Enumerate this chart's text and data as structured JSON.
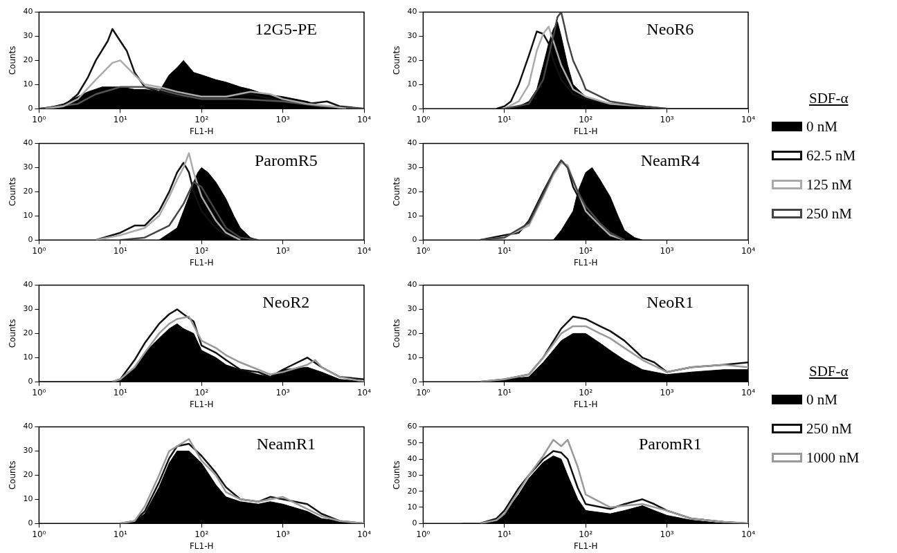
{
  "chart_data": [
    {
      "type": "line",
      "title": "12G5-PE",
      "xlabel": "FL1-H",
      "ylabel": "Counts",
      "log": "x",
      "xlim": [
        1,
        10000
      ],
      "ylim": [
        0,
        40
      ],
      "xticks": [
        {
          "value": 1,
          "label": "10⁰"
        },
        {
          "value": 10,
          "label": "10¹"
        },
        {
          "value": 100,
          "label": "10²"
        },
        {
          "value": 1000,
          "label": "10³"
        },
        {
          "value": 10000,
          "label": "10⁴"
        }
      ],
      "yticks": [
        0,
        10,
        20,
        30,
        40
      ],
      "legend": false,
      "series": [
        {
          "type": "area",
          "color": "#000000",
          "x": [
            1,
            1.5,
            2,
            3,
            4,
            6,
            8,
            10,
            15,
            20,
            30,
            40,
            50,
            60,
            80,
            100,
            150,
            200,
            300,
            400,
            600,
            1000,
            2000,
            3000,
            5000,
            10000
          ],
          "values": [
            0,
            1,
            2,
            5,
            7,
            9,
            9,
            9,
            8,
            8,
            7,
            14,
            17,
            20,
            15,
            14,
            12,
            11,
            9,
            8,
            6,
            5,
            3,
            1,
            0,
            0
          ]
        },
        {
          "type": "line",
          "color": "#111111",
          "x": [
            1,
            2,
            3,
            4,
            5,
            7,
            8,
            10,
            12,
            15,
            20,
            30,
            50,
            100,
            200,
            400,
            1000,
            2000,
            3500,
            5000,
            10000
          ],
          "values": [
            0,
            1,
            6,
            13,
            20,
            28,
            33,
            28,
            24,
            15,
            9,
            7,
            5,
            5,
            5,
            6,
            3,
            2,
            3,
            1,
            0
          ]
        },
        {
          "type": "line",
          "color": "#555555",
          "x": [
            1,
            3,
            5,
            8,
            10,
            20,
            30,
            50,
            100,
            300,
            1000,
            3000,
            10000
          ],
          "values": [
            0,
            2,
            6,
            8,
            9,
            9,
            8,
            6,
            4,
            4,
            3,
            1,
            0
          ]
        },
        {
          "type": "line",
          "color": "#aaaaaa",
          "x": [
            1.2,
            2,
            3,
            5,
            8,
            10,
            15,
            20,
            30,
            50,
            100,
            200,
            400,
            700,
            1000,
            2000,
            4000,
            6000
          ],
          "values": [
            0,
            1,
            4,
            12,
            19,
            20,
            14,
            10,
            9,
            7,
            5,
            5,
            7,
            6,
            4,
            2,
            1,
            0
          ]
        }
      ]
    },
    {
      "type": "line",
      "title": "NeoR6",
      "xlabel": "FL1-H",
      "ylabel": "Counts",
      "log": "x",
      "xlim": [
        1,
        10000
      ],
      "ylim": [
        0,
        40
      ],
      "xticks": [
        {
          "value": 1,
          "label": "10⁰"
        },
        {
          "value": 10,
          "label": "10¹"
        },
        {
          "value": 100,
          "label": "10²"
        },
        {
          "value": 1000,
          "label": "10³"
        },
        {
          "value": 10000,
          "label": "10⁴"
        }
      ],
      "yticks": [
        0,
        10,
        20,
        30,
        40
      ],
      "legend": "right",
      "legend_title": "SDF-α",
      "series": [
        {
          "name": "0 nM",
          "type": "area",
          "color": "#000000",
          "x": [
            10,
            15,
            20,
            25,
            30,
            35,
            40,
            45,
            50,
            60,
            70,
            100,
            200,
            500,
            1000,
            10000
          ],
          "values": [
            0,
            1,
            3,
            8,
            18,
            27,
            33,
            36,
            30,
            18,
            10,
            5,
            2,
            1,
            0,
            0
          ]
        },
        {
          "name": "62.5 nM",
          "type": "line",
          "color": "#111111",
          "x": [
            8,
            10,
            12,
            15,
            20,
            25,
            30,
            35,
            40,
            50,
            70,
            100,
            200,
            500,
            1000
          ],
          "values": [
            0,
            1,
            3,
            10,
            22,
            32,
            31,
            27,
            20,
            12,
            6,
            4,
            2,
            1,
            0
          ]
        },
        {
          "name": "125 nM",
          "type": "line",
          "color": "#aaaaaa",
          "x": [
            10,
            15,
            20,
            25,
            30,
            35,
            40,
            50,
            70,
            100,
            200,
            500,
            1000
          ],
          "values": [
            0,
            3,
            10,
            24,
            31,
            34,
            28,
            18,
            8,
            5,
            2,
            1,
            0
          ]
        },
        {
          "name": "250 nM",
          "type": "line",
          "color": "#444444",
          "x": [
            10,
            20,
            30,
            40,
            45,
            50,
            55,
            60,
            70,
            90,
            100,
            200,
            500,
            1000
          ],
          "values": [
            0,
            2,
            12,
            30,
            38,
            40,
            34,
            28,
            20,
            12,
            8,
            3,
            1,
            0
          ]
        }
      ]
    },
    {
      "type": "line",
      "title": "ParomR5",
      "xlabel": "FL1-H",
      "ylabel": "Counts",
      "log": "x",
      "xlim": [
        1,
        10000
      ],
      "ylim": [
        0,
        40
      ],
      "xticks": [
        {
          "value": 1,
          "label": "10⁰"
        },
        {
          "value": 10,
          "label": "10¹"
        },
        {
          "value": 100,
          "label": "10²"
        },
        {
          "value": 1000,
          "label": "10³"
        },
        {
          "value": 10000,
          "label": "10⁴"
        }
      ],
      "yticks": [
        0,
        10,
        20,
        30,
        40
      ],
      "legend": false,
      "series": [
        {
          "type": "area",
          "color": "#000000",
          "x": [
            30,
            50,
            60,
            70,
            80,
            90,
            100,
            120,
            150,
            200,
            250,
            300,
            400,
            500
          ],
          "values": [
            0,
            5,
            12,
            18,
            24,
            28,
            30,
            28,
            24,
            17,
            10,
            5,
            1,
            0
          ]
        },
        {
          "type": "line",
          "color": "#111111",
          "x": [
            5,
            10,
            15,
            20,
            30,
            40,
            50,
            60,
            70,
            80,
            100,
            150,
            200,
            300
          ],
          "values": [
            0,
            3,
            6,
            6,
            12,
            20,
            28,
            32,
            28,
            20,
            12,
            5,
            2,
            0
          ]
        },
        {
          "type": "line",
          "color": "#aaaaaa",
          "x": [
            5,
            10,
            20,
            30,
            40,
            50,
            60,
            70,
            80,
            100,
            150,
            200,
            300
          ],
          "values": [
            0,
            2,
            5,
            10,
            18,
            25,
            30,
            36,
            28,
            18,
            8,
            3,
            0
          ]
        },
        {
          "type": "line",
          "color": "#444444",
          "x": [
            10,
            20,
            40,
            60,
            80,
            100,
            150,
            200,
            300,
            500
          ],
          "values": [
            0,
            1,
            6,
            15,
            24,
            22,
            12,
            5,
            1,
            0
          ]
        }
      ]
    },
    {
      "type": "line",
      "title": "NeamR4",
      "xlabel": "FL1-H",
      "ylabel": "Counts",
      "log": "x",
      "xlim": [
        1,
        10000
      ],
      "ylim": [
        0,
        40
      ],
      "xticks": [
        {
          "value": 1,
          "label": "10⁰"
        },
        {
          "value": 10,
          "label": "10¹"
        },
        {
          "value": 100,
          "label": "10²"
        },
        {
          "value": 1000,
          "label": "10³"
        },
        {
          "value": 10000,
          "label": "10⁴"
        }
      ],
      "yticks": [
        0,
        10,
        20,
        30,
        40
      ],
      "legend": false,
      "series": [
        {
          "type": "area",
          "color": "#000000",
          "x": [
            40,
            50,
            70,
            80,
            100,
            120,
            150,
            200,
            250,
            300,
            400,
            500
          ],
          "values": [
            0,
            4,
            12,
            20,
            28,
            30,
            25,
            18,
            10,
            4,
            1,
            0
          ]
        },
        {
          "type": "line",
          "color": "#111111",
          "x": [
            5,
            10,
            15,
            20,
            30,
            40,
            50,
            60,
            70,
            100,
            150,
            200,
            300
          ],
          "values": [
            0,
            2,
            3,
            8,
            20,
            28,
            33,
            30,
            22,
            12,
            6,
            2,
            0
          ]
        },
        {
          "type": "line",
          "color": "#aaaaaa",
          "x": [
            5,
            10,
            20,
            30,
            40,
            50,
            60,
            70,
            100,
            150,
            200,
            300
          ],
          "values": [
            0,
            1,
            6,
            18,
            27,
            32,
            31,
            25,
            12,
            6,
            2,
            0
          ]
        },
        {
          "type": "line",
          "color": "#444444",
          "x": [
            5,
            10,
            20,
            30,
            40,
            50,
            60,
            80,
            100,
            150,
            200,
            300
          ],
          "values": [
            0,
            1,
            7,
            19,
            28,
            33,
            30,
            20,
            14,
            7,
            3,
            0
          ]
        }
      ]
    },
    {
      "type": "line",
      "title": "NeoR2",
      "xlabel": "FL1-H",
      "ylabel": "Counts",
      "log": "x",
      "xlim": [
        1,
        10000
      ],
      "ylim": [
        0,
        40
      ],
      "xticks": [
        {
          "value": 1,
          "label": "10⁰"
        },
        {
          "value": 10,
          "label": "10¹"
        },
        {
          "value": 100,
          "label": "10²"
        },
        {
          "value": 1000,
          "label": "10³"
        },
        {
          "value": 10000,
          "label": "10⁴"
        }
      ],
      "yticks": [
        0,
        10,
        20,
        30,
        40
      ],
      "legend": false,
      "series": [
        {
          "type": "area",
          "color": "#000000",
          "x": [
            1,
            8,
            10,
            15,
            20,
            30,
            40,
            50,
            60,
            80,
            100,
            150,
            200,
            300,
            500,
            700,
            1000,
            2000,
            3000,
            5000,
            10000
          ],
          "values": [
            0,
            0,
            1,
            6,
            12,
            18,
            22,
            24,
            22,
            20,
            13,
            10,
            7,
            5,
            3,
            2,
            5,
            6,
            4,
            1,
            0
          ]
        },
        {
          "type": "line",
          "color": "#111111",
          "x": [
            8,
            10,
            15,
            20,
            30,
            40,
            50,
            60,
            80,
            100,
            150,
            200,
            300,
            500,
            700,
            1000,
            2000,
            3000,
            5000,
            10000
          ],
          "values": [
            0,
            1,
            9,
            16,
            24,
            28,
            30,
            28,
            25,
            15,
            12,
            9,
            5,
            4,
            2,
            5,
            10,
            6,
            2,
            1
          ]
        },
        {
          "type": "line",
          "color": "#999999",
          "x": [
            8,
            10,
            15,
            20,
            30,
            40,
            50,
            70,
            100,
            150,
            200,
            300,
            500,
            700,
            1000,
            2000,
            2500,
            3000,
            5000,
            10000
          ],
          "values": [
            0,
            1,
            6,
            12,
            20,
            24,
            26,
            27,
            17,
            14,
            11,
            8,
            5,
            3,
            4,
            7,
            9,
            6,
            2,
            0
          ]
        }
      ]
    },
    {
      "type": "line",
      "title": "NeoR1",
      "xlabel": "FL1-H",
      "ylabel": "Counts",
      "log": "x",
      "xlim": [
        1,
        10000
      ],
      "ylim": [
        0,
        40
      ],
      "xticks": [
        {
          "value": 1,
          "label": "10⁰"
        },
        {
          "value": 10,
          "label": "10¹"
        },
        {
          "value": 100,
          "label": "10²"
        },
        {
          "value": 1000,
          "label": "10³"
        },
        {
          "value": 10000,
          "label": "10⁴"
        }
      ],
      "yticks": [
        0,
        10,
        20,
        30,
        40
      ],
      "legend": "right",
      "legend_title": "SDF-α",
      "series": [
        {
          "name": "0 nM",
          "type": "area",
          "color": "#000000",
          "x": [
            5,
            10,
            20,
            30,
            50,
            70,
            100,
            150,
            200,
            300,
            500,
            1000,
            2000,
            5000,
            10000
          ],
          "values": [
            0,
            1,
            2,
            8,
            17,
            20,
            20,
            16,
            13,
            9,
            5,
            3,
            4,
            5,
            5
          ]
        },
        {
          "name": "250 nM",
          "type": "line",
          "color": "#111111",
          "x": [
            5,
            10,
            20,
            30,
            50,
            70,
            100,
            150,
            200,
            300,
            500,
            700,
            1000,
            2000,
            5000,
            10000
          ],
          "values": [
            0,
            1,
            3,
            10,
            22,
            27,
            26,
            23,
            21,
            17,
            10,
            8,
            4,
            6,
            7,
            8
          ]
        },
        {
          "name": "1000 nM",
          "type": "line",
          "color": "#999999",
          "x": [
            5,
            10,
            20,
            30,
            50,
            70,
            100,
            150,
            200,
            300,
            500,
            1000,
            2000,
            5000,
            10000
          ],
          "values": [
            0,
            1,
            3,
            10,
            20,
            23,
            23,
            20,
            18,
            14,
            9,
            4,
            6,
            7,
            6
          ]
        }
      ]
    },
    {
      "type": "line",
      "title": "NeamR1",
      "xlabel": "FL1-H",
      "ylabel": "Counts",
      "log": "x",
      "xlim": [
        1,
        10000
      ],
      "ylim": [
        0,
        40
      ],
      "xticks": [
        {
          "value": 1,
          "label": "10⁰"
        },
        {
          "value": 10,
          "label": "10¹"
        },
        {
          "value": 100,
          "label": "10²"
        },
        {
          "value": 1000,
          "label": "10³"
        },
        {
          "value": 10000,
          "label": "10⁴"
        }
      ],
      "yticks": [
        0,
        10,
        20,
        30,
        40
      ],
      "legend": false,
      "series": [
        {
          "type": "area",
          "color": "#000000",
          "x": [
            10,
            15,
            20,
            30,
            40,
            50,
            70,
            100,
            150,
            200,
            300,
            500,
            700,
            1000,
            2000,
            3000,
            5000,
            10000
          ],
          "values": [
            0,
            1,
            4,
            15,
            25,
            30,
            30,
            25,
            16,
            11,
            9,
            8,
            9,
            8,
            5,
            2,
            1,
            0
          ]
        },
        {
          "type": "line",
          "color": "#111111",
          "x": [
            10,
            15,
            20,
            30,
            40,
            50,
            70,
            100,
            150,
            200,
            300,
            500,
            700,
            1000,
            2000,
            3000,
            5000,
            10000
          ],
          "values": [
            0,
            1,
            5,
            17,
            27,
            32,
            33,
            28,
            21,
            15,
            10,
            9,
            11,
            10,
            8,
            4,
            1,
            0
          ]
        },
        {
          "type": "line",
          "color": "#999999",
          "x": [
            10,
            15,
            20,
            30,
            40,
            50,
            70,
            100,
            150,
            200,
            300,
            500,
            1000,
            2000,
            3000,
            5000,
            10000
          ],
          "values": [
            0,
            1,
            7,
            20,
            30,
            32,
            35,
            26,
            20,
            13,
            10,
            9,
            11,
            6,
            3,
            1,
            0
          ]
        }
      ]
    },
    {
      "type": "line",
      "title": "ParomR1",
      "xlabel": "FL1-H",
      "ylabel": "Counts",
      "log": "x",
      "xlim": [
        1,
        10000
      ],
      "ylim": [
        0,
        60
      ],
      "xticks": [
        {
          "value": 1,
          "label": "10⁰"
        },
        {
          "value": 10,
          "label": "10¹"
        },
        {
          "value": 100,
          "label": "10²"
        },
        {
          "value": 1000,
          "label": "10³"
        },
        {
          "value": 10000,
          "label": "10⁴"
        }
      ],
      "yticks": [
        0,
        10,
        20,
        30,
        40,
        50,
        60
      ],
      "legend": false,
      "series": [
        {
          "type": "area",
          "color": "#000000",
          "x": [
            3,
            5,
            8,
            10,
            15,
            20,
            30,
            40,
            50,
            60,
            80,
            100,
            200,
            300,
            500,
            700,
            1000,
            2000,
            5000,
            10000
          ],
          "values": [
            0,
            0,
            2,
            6,
            18,
            28,
            38,
            42,
            40,
            30,
            15,
            8,
            6,
            8,
            11,
            8,
            5,
            2,
            0,
            0
          ]
        },
        {
          "type": "line",
          "color": "#111111",
          "x": [
            5,
            8,
            10,
            15,
            20,
            30,
            40,
            50,
            60,
            80,
            100,
            200,
            300,
            500,
            700,
            1000,
            2000,
            5000,
            10000
          ],
          "values": [
            0,
            3,
            8,
            22,
            30,
            40,
            45,
            44,
            40,
            22,
            12,
            9,
            12,
            15,
            12,
            8,
            3,
            1,
            0
          ]
        },
        {
          "type": "line",
          "color": "#999999",
          "x": [
            5,
            8,
            10,
            15,
            20,
            30,
            40,
            50,
            60,
            80,
            100,
            200,
            300,
            500,
            1000,
            2000,
            5000,
            10000
          ],
          "values": [
            0,
            2,
            6,
            20,
            30,
            42,
            52,
            48,
            52,
            35,
            18,
            10,
            11,
            12,
            8,
            3,
            1,
            0
          ]
        }
      ]
    }
  ]
}
